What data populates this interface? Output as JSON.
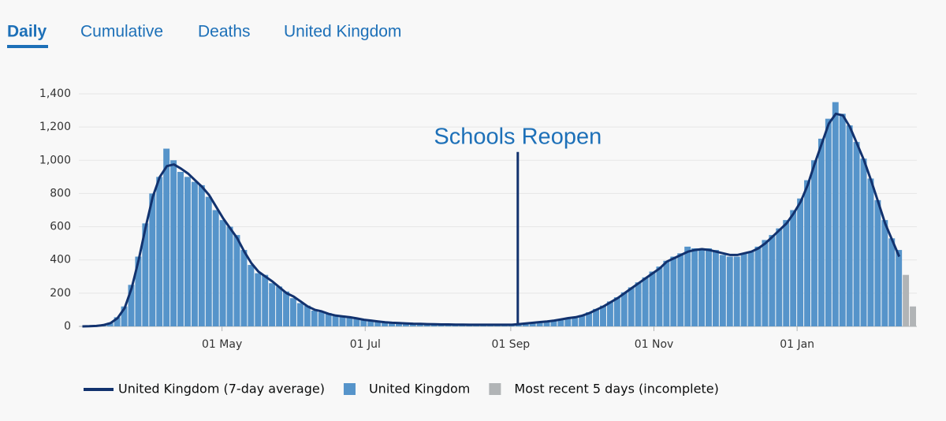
{
  "tabs": [
    "Daily",
    "Cumulative",
    "Deaths",
    "United Kingdom"
  ],
  "chart_data": {
    "type": "bar",
    "x": [
      0,
      3,
      6,
      9,
      12,
      15,
      18,
      21,
      24,
      27,
      30,
      33,
      36,
      39,
      42,
      45,
      48,
      51,
      54,
      57,
      60,
      63,
      66,
      69,
      72,
      75,
      78,
      81,
      84,
      87,
      90,
      93,
      96,
      99,
      102,
      105,
      108,
      111,
      114,
      117,
      120,
      123,
      126,
      129,
      132,
      135,
      138,
      141,
      144,
      147,
      150,
      153,
      156,
      159,
      162,
      165,
      168,
      171,
      174,
      177,
      180,
      183,
      186,
      189,
      192,
      195,
      198,
      201,
      204,
      207,
      210,
      213,
      216,
      219,
      222,
      225,
      228,
      231,
      234,
      237,
      240,
      243,
      246,
      249,
      252,
      255,
      258,
      261,
      264,
      267,
      270,
      273,
      276,
      279,
      282,
      285,
      288,
      291,
      294,
      297,
      300,
      303,
      306,
      309,
      312,
      315,
      318,
      321,
      324,
      327,
      330,
      333,
      336,
      339,
      342,
      345,
      348,
      351,
      354
    ],
    "xlim": [
      0,
      357
    ],
    "xticks": [
      {
        "value": 61,
        "label": "01 May"
      },
      {
        "value": 122,
        "label": "01 Jul"
      },
      {
        "value": 184,
        "label": "01 Sep"
      },
      {
        "value": 245,
        "label": "01 Nov"
      },
      {
        "value": 306,
        "label": "01 Jan"
      }
    ],
    "ylim": [
      0,
      1400
    ],
    "yticks": [
      0,
      200,
      400,
      600,
      800,
      {
        "value": 1000,
        "label": "1,000"
      },
      {
        "value": 1200,
        "label": "1,200"
      },
      {
        "value": 1400,
        "label": "1,400"
      }
    ],
    "grid": true,
    "series": [
      {
        "name": "United Kingdom (7-day average)",
        "color": "#12326e",
        "kind": "line",
        "values": [
          0,
          1,
          3,
          8,
          20,
          50,
          110,
          230,
          400,
          600,
          780,
          900,
          965,
          975,
          950,
          920,
          880,
          840,
          790,
          720,
          650,
          590,
          530,
          450,
          380,
          330,
          300,
          270,
          235,
          200,
          180,
          150,
          120,
          100,
          90,
          75,
          65,
          60,
          55,
          48,
          40,
          35,
          30,
          25,
          22,
          20,
          18,
          16,
          15,
          14,
          13,
          12,
          12,
          11,
          11,
          10,
          10,
          10,
          10,
          10,
          10,
          10,
          14,
          18,
          22,
          26,
          30,
          35,
          42,
          50,
          55,
          65,
          80,
          100,
          120,
          145,
          170,
          200,
          230,
          260,
          290,
          320,
          350,
          390,
          410,
          430,
          450,
          460,
          465,
          460,
          450,
          440,
          430,
          430,
          440,
          450,
          470,
          500,
          540,
          580,
          620,
          680,
          750,
          850,
          980,
          1100,
          1220,
          1280,
          1270,
          1200,
          1100,
          1000,
          880,
          750,
          620,
          520,
          420,
          null,
          null
        ]
      },
      {
        "name": "United Kingdom",
        "color": "#5694ca",
        "kind": "bar",
        "values": [
          0,
          1,
          2,
          10,
          22,
          55,
          120,
          250,
          420,
          620,
          800,
          900,
          1070,
          1000,
          930,
          900,
          870,
          850,
          780,
          700,
          640,
          600,
          550,
          460,
          370,
          320,
          310,
          260,
          240,
          210,
          170,
          140,
          125,
          95,
          85,
          80,
          62,
          65,
          52,
          50,
          38,
          36,
          28,
          24,
          22,
          19,
          18,
          15,
          15,
          13,
          12,
          12,
          11,
          11,
          10,
          10,
          9,
          10,
          9,
          10,
          9,
          11,
          15,
          19,
          24,
          27,
          32,
          36,
          44,
          52,
          58,
          68,
          85,
          105,
          125,
          150,
          175,
          205,
          235,
          265,
          295,
          330,
          360,
          395,
          420,
          440,
          480,
          470,
          470,
          470,
          460,
          430,
          420,
          420,
          440,
          450,
          480,
          520,
          550,
          590,
          640,
          700,
          770,
          880,
          1000,
          1130,
          1250,
          1350,
          1280,
          1210,
          1110,
          1010,
          890,
          760,
          640,
          530,
          460,
          null,
          null
        ]
      },
      {
        "name": "Most recent 5 days (incomplete)",
        "color": "#b1b4b6",
        "kind": "bar",
        "x": [
          351,
          354
        ],
        "values": [
          310,
          120
        ]
      }
    ],
    "annotations": [
      {
        "text": "Schools Reopen",
        "x": 187,
        "y": 1050
      }
    ]
  }
}
